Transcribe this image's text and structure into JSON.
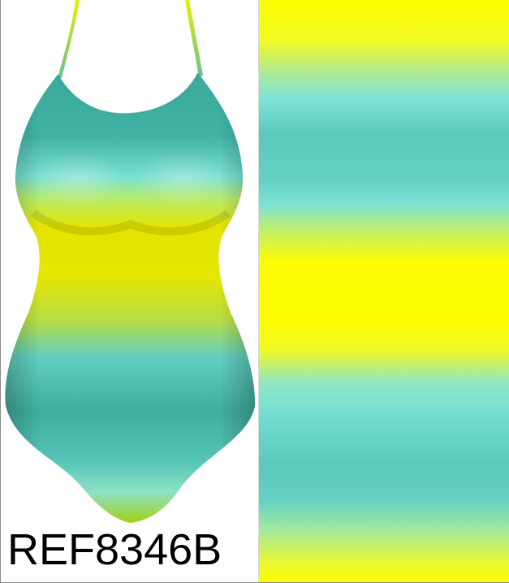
{
  "product": {
    "reference_code": "REF8346B",
    "garment_icon": "one-piece-swimsuit-icon",
    "pattern": "horizontal-ombre-stripes"
  },
  "colors": {
    "yellow": "#fefc00",
    "turquoise": "#5cc9bb",
    "aqua_light": "#7ee2d6",
    "lime": "#c6f160",
    "background": "#ffffff",
    "text": "#000000"
  }
}
